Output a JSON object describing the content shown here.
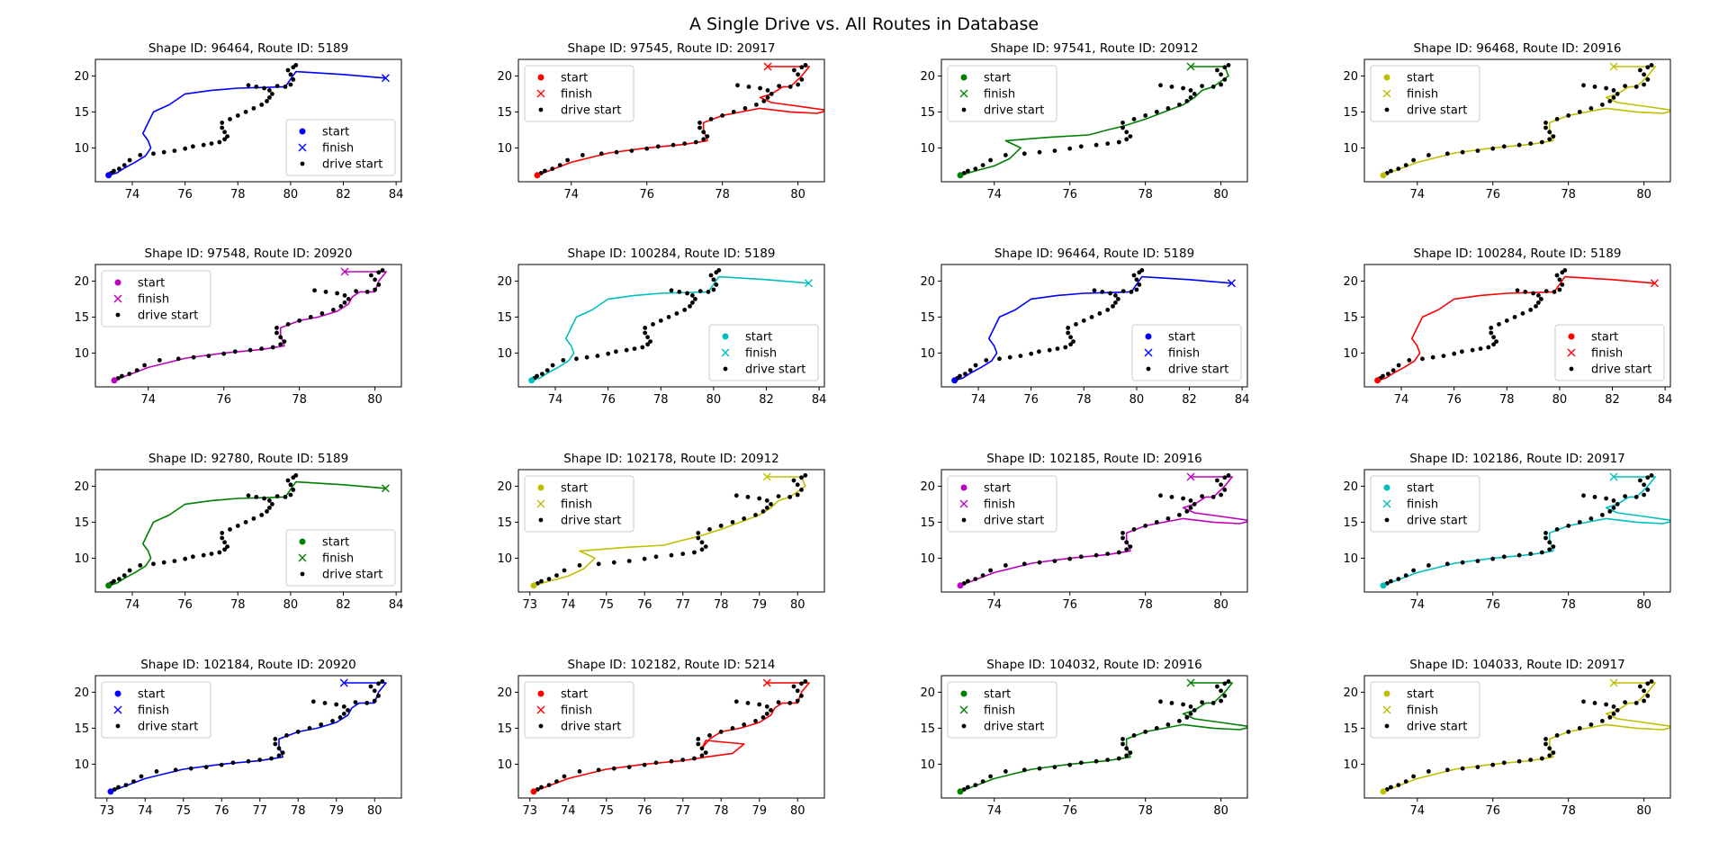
{
  "figure": {
    "suptitle": "A Single Drive vs. All Routes in Database",
    "legend_labels": {
      "start": "start",
      "finish": "finish",
      "drive": "drive start"
    }
  },
  "colors": {
    "blue": "#0000ff",
    "red": "#ff0000",
    "green": "#008000",
    "yellow": "#bfbf00",
    "magenta": "#bf00bf",
    "cyan": "#00bfbf",
    "drive": "#000000"
  },
  "chart_data": [
    {
      "type": "line",
      "title": "Shape ID: 96464, Route ID: 5189",
      "color": "blue",
      "route": "A",
      "xlim": [
        72.6,
        84.2
      ],
      "ylim": [
        5.3,
        22.3
      ],
      "xticks": [
        74,
        76,
        78,
        80,
        82,
        84
      ],
      "yticks": [
        10,
        15,
        20
      ],
      "legend": "lower right"
    },
    {
      "type": "line",
      "title": "Shape ID: 97545, Route ID: 20917",
      "color": "red",
      "route": "C",
      "xlim": [
        72.6,
        80.7
      ],
      "ylim": [
        5.3,
        22.3
      ],
      "xticks": [
        74,
        76,
        78,
        80
      ],
      "yticks": [
        10,
        15,
        20
      ],
      "legend": "upper left"
    },
    {
      "type": "line",
      "title": "Shape ID: 97541, Route ID: 20912",
      "color": "green",
      "route": "B",
      "xlim": [
        72.6,
        80.7
      ],
      "ylim": [
        5.3,
        22.3
      ],
      "xticks": [
        74,
        76,
        78,
        80
      ],
      "yticks": [
        10,
        15,
        20
      ],
      "legend": "upper left"
    },
    {
      "type": "line",
      "title": "Shape ID: 96468, Route ID: 20916",
      "color": "yellow",
      "route": "C",
      "xlim": [
        72.6,
        80.7
      ],
      "ylim": [
        5.3,
        22.3
      ],
      "xticks": [
        74,
        76,
        78,
        80
      ],
      "yticks": [
        10,
        15,
        20
      ],
      "legend": "upper left"
    },
    {
      "type": "line",
      "title": "Shape ID: 97548, Route ID: 20920",
      "color": "magenta",
      "route": "D",
      "xlim": [
        72.6,
        80.7
      ],
      "ylim": [
        5.3,
        22.3
      ],
      "xticks": [
        74,
        76,
        78,
        80
      ],
      "yticks": [
        10,
        15,
        20
      ],
      "legend": "upper left"
    },
    {
      "type": "line",
      "title": "Shape ID: 100284, Route ID: 5189",
      "color": "cyan",
      "route": "A",
      "xlim": [
        72.6,
        84.2
      ],
      "ylim": [
        5.3,
        22.3
      ],
      "xticks": [
        74,
        76,
        78,
        80,
        82,
        84
      ],
      "yticks": [
        10,
        15,
        20
      ],
      "legend": "lower right"
    },
    {
      "type": "line",
      "title": "Shape ID: 96464, Route ID: 5189",
      "color": "blue",
      "route": "A",
      "xlim": [
        72.6,
        84.2
      ],
      "ylim": [
        5.3,
        22.3
      ],
      "xticks": [
        74,
        76,
        78,
        80,
        82,
        84
      ],
      "yticks": [
        10,
        15,
        20
      ],
      "legend": "lower right"
    },
    {
      "type": "line",
      "title": "Shape ID: 100284, Route ID: 5189",
      "color": "red",
      "route": "A",
      "xlim": [
        72.6,
        84.2
      ],
      "ylim": [
        5.3,
        22.3
      ],
      "xticks": [
        74,
        76,
        78,
        80,
        82,
        84
      ],
      "yticks": [
        10,
        15,
        20
      ],
      "legend": "lower right"
    },
    {
      "type": "line",
      "title": "Shape ID: 92780, Route ID: 5189",
      "color": "green",
      "route": "A",
      "xlim": [
        72.6,
        84.2
      ],
      "ylim": [
        5.3,
        22.3
      ],
      "xticks": [
        74,
        76,
        78,
        80,
        82,
        84
      ],
      "yticks": [
        10,
        15,
        20
      ],
      "legend": "lower right"
    },
    {
      "type": "line",
      "title": "Shape ID: 102178, Route ID: 20912",
      "color": "yellow",
      "route": "B",
      "xlim": [
        72.7,
        80.7
      ],
      "ylim": [
        5.3,
        22.3
      ],
      "xticks": [
        73,
        74,
        75,
        76,
        77,
        78,
        79,
        80
      ],
      "yticks": [
        10,
        15,
        20
      ],
      "legend": "upper left"
    },
    {
      "type": "line",
      "title": "Shape ID: 102185, Route ID: 20916",
      "color": "magenta",
      "route": "C",
      "xlim": [
        72.6,
        80.7
      ],
      "ylim": [
        5.3,
        22.3
      ],
      "xticks": [
        74,
        76,
        78,
        80
      ],
      "yticks": [
        10,
        15,
        20
      ],
      "legend": "upper left"
    },
    {
      "type": "line",
      "title": "Shape ID: 102186, Route ID: 20917",
      "color": "cyan",
      "route": "C",
      "xlim": [
        72.6,
        80.7
      ],
      "ylim": [
        5.3,
        22.3
      ],
      "xticks": [
        74,
        76,
        78,
        80
      ],
      "yticks": [
        10,
        15,
        20
      ],
      "legend": "upper left"
    },
    {
      "type": "line",
      "title": "Shape ID: 102184, Route ID: 20920",
      "color": "blue",
      "route": "D",
      "xlim": [
        72.7,
        80.7
      ],
      "ylim": [
        5.3,
        22.3
      ],
      "xticks": [
        73,
        74,
        75,
        76,
        77,
        78,
        79,
        80
      ],
      "yticks": [
        10,
        15,
        20
      ],
      "legend": "upper left"
    },
    {
      "type": "line",
      "title": "Shape ID: 102182, Route ID: 5214",
      "color": "red",
      "route": "E",
      "xlim": [
        72.7,
        80.7
      ],
      "ylim": [
        5.3,
        22.3
      ],
      "xticks": [
        73,
        74,
        75,
        76,
        77,
        78,
        79,
        80
      ],
      "yticks": [
        10,
        15,
        20
      ],
      "legend": "upper left"
    },
    {
      "type": "line",
      "title": "Shape ID: 104032, Route ID: 20916",
      "color": "green",
      "route": "C",
      "xlim": [
        72.6,
        80.7
      ],
      "ylim": [
        5.3,
        22.3
      ],
      "xticks": [
        74,
        76,
        78,
        80
      ],
      "yticks": [
        10,
        15,
        20
      ],
      "legend": "upper left"
    },
    {
      "type": "line",
      "title": "Shape ID: 104033, Route ID: 20917",
      "color": "yellow",
      "route": "C",
      "xlim": [
        72.6,
        80.7
      ],
      "ylim": [
        5.3,
        22.3
      ],
      "xticks": [
        74,
        76,
        78,
        80
      ],
      "yticks": [
        10,
        15,
        20
      ],
      "legend": "upper left"
    }
  ],
  "routes": {
    "A": [
      [
        73.1,
        6.2
      ],
      [
        73.4,
        6.5
      ],
      [
        73.7,
        7.2
      ],
      [
        74.1,
        8.0
      ],
      [
        74.5,
        8.9
      ],
      [
        74.7,
        10.0
      ],
      [
        74.6,
        11.0
      ],
      [
        74.4,
        12.0
      ],
      [
        74.6,
        13.5
      ],
      [
        74.8,
        15.0
      ],
      [
        75.4,
        16.0
      ],
      [
        76.0,
        17.5
      ],
      [
        77.0,
        18.0
      ],
      [
        78.0,
        18.3
      ],
      [
        79.0,
        18.4
      ],
      [
        79.8,
        18.5
      ],
      [
        80.2,
        20.6
      ],
      [
        82.0,
        20.2
      ],
      [
        83.6,
        19.7
      ]
    ],
    "B": [
      [
        73.1,
        6.2
      ],
      [
        73.5,
        6.8
      ],
      [
        74.0,
        7.5
      ],
      [
        74.4,
        8.5
      ],
      [
        74.7,
        10.0
      ],
      [
        74.3,
        11.0
      ],
      [
        75.5,
        11.5
      ],
      [
        76.5,
        11.8
      ],
      [
        77.0,
        12.5
      ],
      [
        77.4,
        13.0
      ],
      [
        78.0,
        14.0
      ],
      [
        78.5,
        15.0
      ],
      [
        79.0,
        16.0
      ],
      [
        79.3,
        17.0
      ],
      [
        79.5,
        18.0
      ],
      [
        79.8,
        18.5
      ],
      [
        80.2,
        20.0
      ],
      [
        80.1,
        21.3
      ],
      [
        79.2,
        21.3
      ]
    ],
    "C": [
      [
        73.1,
        6.2
      ],
      [
        73.5,
        7.0
      ],
      [
        74.0,
        8.0
      ],
      [
        75.0,
        9.3
      ],
      [
        76.0,
        10.0
      ],
      [
        77.0,
        10.5
      ],
      [
        77.6,
        11.0
      ],
      [
        77.5,
        12.5
      ],
      [
        77.5,
        13.5
      ],
      [
        78.0,
        14.5
      ],
      [
        78.5,
        15.0
      ],
      [
        79.0,
        15.5
      ],
      [
        79.8,
        15.0
      ],
      [
        80.5,
        14.8
      ],
      [
        80.8,
        15.2
      ],
      [
        80.0,
        15.8
      ],
      [
        79.3,
        16.3
      ],
      [
        79.0,
        17.0
      ],
      [
        79.3,
        17.5
      ],
      [
        79.6,
        18.5
      ],
      [
        79.8,
        18.5
      ],
      [
        80.1,
        20.0
      ],
      [
        80.3,
        21.3
      ],
      [
        79.2,
        21.3
      ]
    ],
    "D": [
      [
        73.1,
        6.2
      ],
      [
        73.5,
        7.0
      ],
      [
        74.0,
        8.0
      ],
      [
        75.0,
        9.3
      ],
      [
        76.0,
        10.0
      ],
      [
        77.0,
        10.5
      ],
      [
        77.6,
        11.0
      ],
      [
        77.5,
        12.5
      ],
      [
        77.5,
        13.5
      ],
      [
        78.0,
        14.5
      ],
      [
        78.5,
        15.0
      ],
      [
        79.0,
        15.8
      ],
      [
        79.3,
        16.8
      ],
      [
        79.4,
        17.8
      ],
      [
        79.6,
        18.5
      ],
      [
        80.0,
        18.5
      ],
      [
        80.1,
        20.0
      ],
      [
        80.3,
        21.3
      ],
      [
        79.2,
        21.3
      ]
    ],
    "E": [
      [
        73.1,
        6.2
      ],
      [
        73.5,
        7.0
      ],
      [
        74.0,
        8.0
      ],
      [
        75.0,
        9.3
      ],
      [
        76.0,
        10.0
      ],
      [
        77.0,
        10.5
      ],
      [
        77.6,
        11.0
      ],
      [
        78.3,
        11.5
      ],
      [
        78.6,
        12.8
      ],
      [
        77.6,
        13.3
      ],
      [
        77.5,
        12.2
      ],
      [
        77.7,
        13.5
      ],
      [
        78.0,
        14.5
      ],
      [
        78.5,
        15.0
      ],
      [
        79.0,
        15.8
      ],
      [
        79.3,
        16.8
      ],
      [
        79.4,
        17.8
      ],
      [
        79.6,
        18.5
      ],
      [
        80.0,
        18.5
      ],
      [
        80.1,
        20.0
      ],
      [
        80.3,
        21.3
      ],
      [
        79.2,
        21.3
      ]
    ]
  },
  "drive_points": [
    [
      73.1,
      6.2
    ],
    [
      73.2,
      6.5
    ],
    [
      73.3,
      6.8
    ],
    [
      73.5,
      7.1
    ],
    [
      73.7,
      7.6
    ],
    [
      73.9,
      8.3
    ],
    [
      74.3,
      9.0
    ],
    [
      74.8,
      9.2
    ],
    [
      75.2,
      9.4
    ],
    [
      75.6,
      9.6
    ],
    [
      76.0,
      9.9
    ],
    [
      76.3,
      10.2
    ],
    [
      76.7,
      10.4
    ],
    [
      77.0,
      10.6
    ],
    [
      77.3,
      10.8
    ],
    [
      77.5,
      11.2
    ],
    [
      77.6,
      11.6
    ],
    [
      77.5,
      12.2
    ],
    [
      77.4,
      12.8
    ],
    [
      77.4,
      13.5
    ],
    [
      77.7,
      14.0
    ],
    [
      78.0,
      14.5
    ],
    [
      78.3,
      15.0
    ],
    [
      78.6,
      15.5
    ],
    [
      78.9,
      16.0
    ],
    [
      79.1,
      16.5
    ],
    [
      79.2,
      17.0
    ],
    [
      79.3,
      17.5
    ],
    [
      79.2,
      18.0
    ],
    [
      79.0,
      18.3
    ],
    [
      78.7,
      18.5
    ],
    [
      78.4,
      18.7
    ],
    [
      79.5,
      18.6
    ],
    [
      79.8,
      18.5
    ],
    [
      80.0,
      18.8
    ],
    [
      80.1,
      19.5
    ],
    [
      80.0,
      20.2
    ],
    [
      79.9,
      20.8
    ],
    [
      80.1,
      21.2
    ],
    [
      80.2,
      21.5
    ]
  ]
}
